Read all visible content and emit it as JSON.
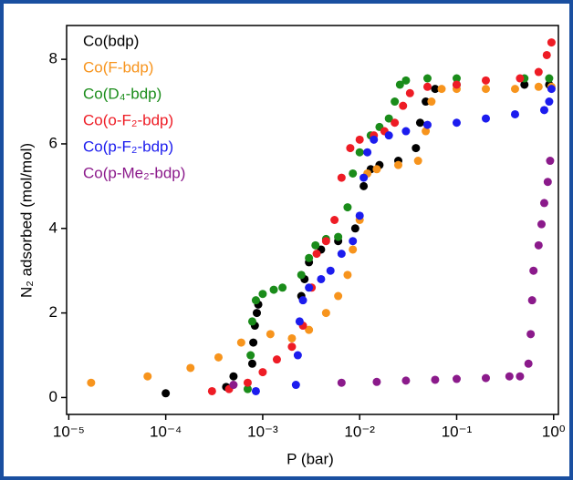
{
  "chart_data": {
    "type": "scatter",
    "xlabel": "P (bar)",
    "ylabel": "N₂ adsorbed (mol/mol)",
    "xlog": true,
    "grid": false,
    "legend": "upper left",
    "xlim": [
      9.5e-06,
      1.12
    ],
    "ylim": [
      -0.4,
      8.8
    ],
    "xticks": [
      {
        "value": 1e-05,
        "label": "10⁻⁵"
      },
      {
        "value": 0.0001,
        "label": "10⁻⁴"
      },
      {
        "value": 0.001,
        "label": "10⁻³"
      },
      {
        "value": 0.01,
        "label": "10⁻²"
      },
      {
        "value": 0.1,
        "label": "10⁻¹"
      },
      {
        "value": 1,
        "label": "10⁰"
      }
    ],
    "yticks": [
      0,
      2,
      4,
      6,
      8
    ],
    "series": [
      {
        "name": "Co(bdp)",
        "color": "#000000",
        "x": [
          0.0001,
          0.00042,
          0.0005,
          0.00078,
          0.0008,
          0.00083,
          0.00087,
          0.0009,
          0.0025,
          0.0027,
          0.003,
          0.004,
          0.006,
          0.009,
          0.011,
          0.013,
          0.016,
          0.025,
          0.038,
          0.042,
          0.048,
          0.06,
          0.1,
          0.5,
          0.9
        ],
        "values": [
          0.1,
          0.25,
          0.5,
          0.8,
          1.3,
          1.7,
          2.0,
          2.2,
          2.4,
          2.8,
          3.2,
          3.5,
          3.7,
          4.0,
          5.0,
          5.4,
          5.5,
          5.6,
          5.9,
          6.5,
          7.0,
          7.3,
          7.4,
          7.4,
          7.4
        ]
      },
      {
        "name": "Co(F-bdp)",
        "color": "#f7941d",
        "x": [
          1.7e-05,
          6.5e-05,
          0.00018,
          0.00035,
          0.0006,
          0.0012,
          0.002,
          0.003,
          0.0045,
          0.006,
          0.0075,
          0.0085,
          0.01,
          0.012,
          0.015,
          0.025,
          0.04,
          0.048,
          0.055,
          0.07,
          0.1,
          0.2,
          0.4,
          0.7,
          0.95
        ],
        "values": [
          0.35,
          0.5,
          0.7,
          0.95,
          1.3,
          1.5,
          1.4,
          1.6,
          2.0,
          2.4,
          2.9,
          3.5,
          4.2,
          5.3,
          5.4,
          5.5,
          5.6,
          6.3,
          7.0,
          7.3,
          7.3,
          7.3,
          7.3,
          7.35,
          7.35
        ]
      },
      {
        "name": "Co(D₄-bdp)",
        "color": "#1a8c1a",
        "x": [
          0.0007,
          0.00075,
          0.00078,
          0.00085,
          0.001,
          0.0013,
          0.0016,
          0.0025,
          0.003,
          0.0035,
          0.0045,
          0.006,
          0.0075,
          0.0085,
          0.01,
          0.013,
          0.016,
          0.02,
          0.023,
          0.026,
          0.03,
          0.05,
          0.1,
          0.5,
          0.9
        ],
        "values": [
          0.2,
          1.0,
          1.8,
          2.3,
          2.45,
          2.55,
          2.6,
          2.9,
          3.3,
          3.6,
          3.75,
          3.8,
          4.5,
          5.3,
          5.8,
          6.2,
          6.4,
          6.6,
          7.0,
          7.4,
          7.5,
          7.55,
          7.55,
          7.55,
          7.55
        ]
      },
      {
        "name": "Co(o-F₂-bdp)",
        "color": "#ee1c25",
        "x": [
          0.0003,
          0.00045,
          0.0007,
          0.001,
          0.0014,
          0.002,
          0.0026,
          0.0032,
          0.0036,
          0.0045,
          0.0055,
          0.0065,
          0.008,
          0.01,
          0.014,
          0.018,
          0.023,
          0.028,
          0.033,
          0.05,
          0.1,
          0.2,
          0.45,
          0.7,
          0.85,
          0.95
        ],
        "values": [
          0.15,
          0.2,
          0.35,
          0.6,
          0.9,
          1.2,
          1.7,
          2.6,
          3.4,
          3.7,
          4.2,
          5.2,
          5.9,
          6.1,
          6.2,
          6.3,
          6.5,
          6.9,
          7.2,
          7.35,
          7.4,
          7.5,
          7.55,
          7.7,
          8.1,
          8.4
        ]
      },
      {
        "name": "Co(p-F₂-bdp)",
        "color": "#1c1cee",
        "x": [
          0.00085,
          0.0022,
          0.0023,
          0.0024,
          0.0026,
          0.003,
          0.004,
          0.005,
          0.0065,
          0.0085,
          0.01,
          0.011,
          0.012,
          0.014,
          0.02,
          0.03,
          0.05,
          0.1,
          0.2,
          0.4,
          0.8,
          0.9,
          0.95
        ],
        "values": [
          0.15,
          0.3,
          1.0,
          1.8,
          2.3,
          2.6,
          2.8,
          3.0,
          3.4,
          3.7,
          4.3,
          5.2,
          5.8,
          6.1,
          6.2,
          6.3,
          6.45,
          6.5,
          6.6,
          6.7,
          6.8,
          7.0,
          7.3
        ]
      },
      {
        "name": "Co(p-Me₂-bdp)",
        "color": "#8b1a8b",
        "x": [
          0.0005,
          0.0065,
          0.015,
          0.03,
          0.06,
          0.1,
          0.2,
          0.35,
          0.45,
          0.55,
          0.58,
          0.6,
          0.62,
          0.7,
          0.75,
          0.8,
          0.87,
          0.92
        ],
        "values": [
          0.3,
          0.35,
          0.37,
          0.4,
          0.42,
          0.44,
          0.46,
          0.5,
          0.5,
          0.8,
          1.5,
          2.3,
          3.0,
          3.6,
          4.1,
          4.6,
          5.1,
          5.6
        ]
      }
    ]
  }
}
